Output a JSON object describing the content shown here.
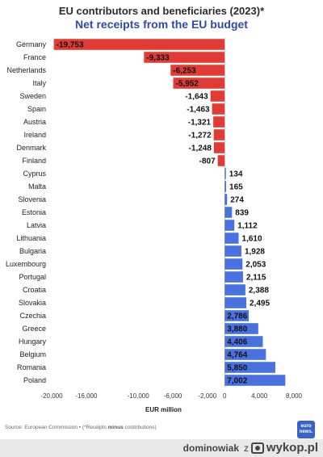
{
  "header": {
    "title": "EU contributors and beneficiaries (2023)*",
    "subtitle": "Net receipts from the EU budget"
  },
  "chart_data": {
    "type": "bar",
    "orientation": "horizontal",
    "title": "EU contributors and beneficiaries (2023)*",
    "subtitle": "Net receipts from the EU budget",
    "xlabel": "EUR million",
    "ylabel": "",
    "xlim": [
      -20000,
      8000
    ],
    "xticks": [
      "-20,000",
      "-16,000",
      "-10,000",
      "-6,000",
      "-2,000",
      "0",
      "4,000",
      "8,000"
    ],
    "xtick_values": [
      -20000,
      -16000,
      -10000,
      -6000,
      -2000,
      0,
      4000,
      8000
    ],
    "grid": false,
    "colors": {
      "negative": "#e03b34",
      "positive": "#4a72de"
    },
    "categories": [
      "Germany",
      "France",
      "Netherlands",
      "Italy",
      "Sweden",
      "Spain",
      "Austria",
      "Ireland",
      "Denmark",
      "Finland",
      "Cyprus",
      "Malta",
      "Slovenia",
      "Estonia",
      "Latvia",
      "Lithuania",
      "Bulgaria",
      "Luxembourg",
      "Portugal",
      "Croatia",
      "Slovakia",
      "Czechia",
      "Greece",
      "Hungary",
      "Belgium",
      "Romania",
      "Poland"
    ],
    "values": [
      -19753,
      -9333,
      -6253,
      -5952,
      -1643,
      -1463,
      -1321,
      -1272,
      -1248,
      -807,
      134,
      165,
      274,
      839,
      1112,
      1610,
      1928,
      2053,
      2115,
      2388,
      2495,
      2786,
      3880,
      4406,
      4764,
      5850,
      7002
    ],
    "value_labels": [
      "-19,753",
      "-9,333",
      "-6,253",
      "-5,952",
      "-1,643",
      "-1,463",
      "-1,321",
      "-1,272",
      "-1,248",
      "-807",
      "134",
      "165",
      "274",
      "839",
      "1,112",
      "1,610",
      "1,928",
      "2,053",
      "2,115",
      "2,388",
      "2,495",
      "2,786",
      "3,880",
      "4,406",
      "4,764",
      "5,850",
      "7,002"
    ]
  },
  "axis_title": "EUR million",
  "source": {
    "prefix": "Source: European Commission • (*Receipts ",
    "emphasis": "minus",
    "suffix": " contributions)"
  },
  "logo": {
    "line1": "euro",
    "line2": "news."
  },
  "footer": {
    "user": "dominowiak",
    "separator": "z",
    "brand": "wykop.pl"
  }
}
